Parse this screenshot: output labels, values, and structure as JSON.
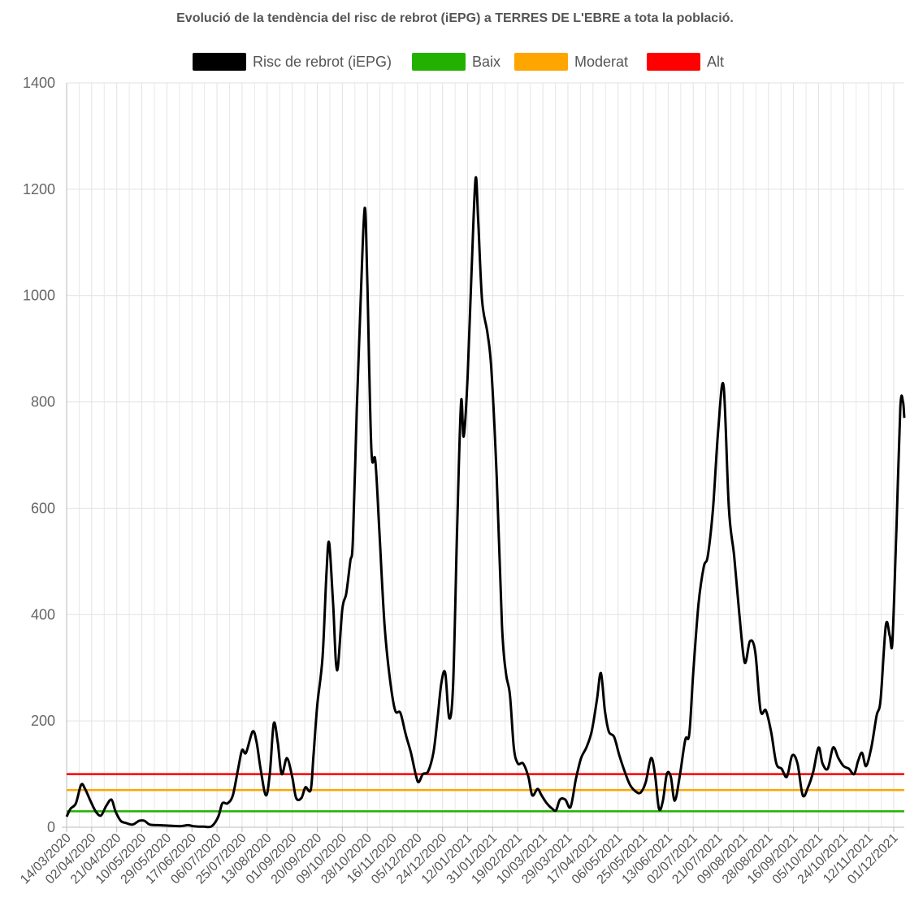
{
  "chart_data": {
    "type": "line",
    "title": "Evolució de la tendència del risc de rebrot (iEPG) a TERRES DE L'EBRE a tota la població.",
    "xlabel": "",
    "ylabel": "",
    "ylim": [
      0,
      1400
    ],
    "yticks": [
      0,
      200,
      400,
      600,
      800,
      1000,
      1200,
      1400
    ],
    "grid": true,
    "legend_position": "top",
    "x_tick_labels": [
      "14/03/2020",
      "02/04/2020",
      "21/04/2020",
      "10/05/2020",
      "29/05/2020",
      "17/06/2020",
      "06/07/2020",
      "25/07/2020",
      "13/08/2020",
      "01/09/2020",
      "20/09/2020",
      "09/10/2020",
      "28/10/2020",
      "16/11/2020",
      "05/12/2020",
      "24/12/2020",
      "12/01/2021",
      "31/01/2021",
      "19/02/2021",
      "10/03/2021",
      "29/03/2021",
      "17/04/2021",
      "06/05/2021",
      "25/05/2021",
      "13/06/2021",
      "02/07/2021",
      "21/07/2021",
      "09/08/2021",
      "28/08/2021",
      "16/09/2021",
      "05/10/2021",
      "24/10/2021",
      "12/11/2021",
      "01/12/2021"
    ],
    "series": [
      {
        "name": "Risc de rebrot (iEPG)",
        "color": "#000000",
        "points": [
          [
            "2020-03-14",
            20
          ],
          [
            "2020-03-17",
            35
          ],
          [
            "2020-03-21",
            45
          ],
          [
            "2020-03-25",
            80
          ],
          [
            "2020-03-28",
            72
          ],
          [
            "2020-04-01",
            50
          ],
          [
            "2020-04-05",
            30
          ],
          [
            "2020-04-09",
            22
          ],
          [
            "2020-04-13",
            40
          ],
          [
            "2020-04-17",
            52
          ],
          [
            "2020-04-20",
            30
          ],
          [
            "2020-04-24",
            12
          ],
          [
            "2020-04-28",
            8
          ],
          [
            "2020-05-03",
            5
          ],
          [
            "2020-05-08",
            12
          ],
          [
            "2020-05-12",
            12
          ],
          [
            "2020-05-16",
            5
          ],
          [
            "2020-05-22",
            4
          ],
          [
            "2020-05-30",
            3
          ],
          [
            "2020-06-08",
            2
          ],
          [
            "2020-06-14",
            4
          ],
          [
            "2020-06-18",
            2
          ],
          [
            "2020-06-26",
            1
          ],
          [
            "2020-07-02",
            2
          ],
          [
            "2020-07-07",
            20
          ],
          [
            "2020-07-10",
            45
          ],
          [
            "2020-07-14",
            45
          ],
          [
            "2020-07-18",
            60
          ],
          [
            "2020-07-22",
            110
          ],
          [
            "2020-07-25",
            145
          ],
          [
            "2020-07-28",
            140
          ],
          [
            "2020-08-02",
            180
          ],
          [
            "2020-08-05",
            160
          ],
          [
            "2020-08-08",
            110
          ],
          [
            "2020-08-12",
            60
          ],
          [
            "2020-08-15",
            100
          ],
          [
            "2020-08-18",
            195
          ],
          [
            "2020-08-21",
            160
          ],
          [
            "2020-08-24",
            100
          ],
          [
            "2020-08-28",
            130
          ],
          [
            "2020-09-01",
            95
          ],
          [
            "2020-09-04",
            55
          ],
          [
            "2020-09-08",
            55
          ],
          [
            "2020-09-11",
            75
          ],
          [
            "2020-09-15",
            70
          ],
          [
            "2020-09-17",
            130
          ],
          [
            "2020-09-20",
            230
          ],
          [
            "2020-09-24",
            320
          ],
          [
            "2020-09-27",
            480
          ],
          [
            "2020-09-29",
            535
          ],
          [
            "2020-10-02",
            420
          ],
          [
            "2020-10-05",
            295
          ],
          [
            "2020-10-09",
            410
          ],
          [
            "2020-10-12",
            440
          ],
          [
            "2020-10-15",
            500
          ],
          [
            "2020-10-17",
            540
          ],
          [
            "2020-10-20",
            790
          ],
          [
            "2020-10-23",
            1000
          ],
          [
            "2020-10-26",
            1165
          ],
          [
            "2020-10-28",
            1020
          ],
          [
            "2020-10-31",
            710
          ],
          [
            "2020-11-03",
            690
          ],
          [
            "2020-11-06",
            560
          ],
          [
            "2020-11-10",
            380
          ],
          [
            "2020-11-14",
            280
          ],
          [
            "2020-11-18",
            220
          ],
          [
            "2020-11-22",
            215
          ],
          [
            "2020-11-26",
            175
          ],
          [
            "2020-11-30",
            140
          ],
          [
            "2020-12-04",
            95
          ],
          [
            "2020-12-06",
            85
          ],
          [
            "2020-12-09",
            100
          ],
          [
            "2020-12-13",
            105
          ],
          [
            "2020-12-17",
            140
          ],
          [
            "2020-12-20",
            200
          ],
          [
            "2020-12-23",
            270
          ],
          [
            "2020-12-26",
            290
          ],
          [
            "2020-12-29",
            205
          ],
          [
            "2021-01-01",
            270
          ],
          [
            "2021-01-04",
            560
          ],
          [
            "2021-01-07",
            800
          ],
          [
            "2021-01-09",
            735
          ],
          [
            "2021-01-12",
            850
          ],
          [
            "2021-01-15",
            1050
          ],
          [
            "2021-01-18",
            1220
          ],
          [
            "2021-01-20",
            1140
          ],
          [
            "2021-01-23",
            990
          ],
          [
            "2021-01-27",
            930
          ],
          [
            "2021-01-30",
            860
          ],
          [
            "2021-02-03",
            660
          ],
          [
            "2021-02-07",
            380
          ],
          [
            "2021-02-10",
            290
          ],
          [
            "2021-02-13",
            250
          ],
          [
            "2021-02-16",
            150
          ],
          [
            "2021-02-19",
            120
          ],
          [
            "2021-02-23",
            120
          ],
          [
            "2021-02-27",
            95
          ],
          [
            "2021-03-02",
            60
          ],
          [
            "2021-03-06",
            72
          ],
          [
            "2021-03-09",
            60
          ],
          [
            "2021-03-13",
            45
          ],
          [
            "2021-03-17",
            35
          ],
          [
            "2021-03-20",
            32
          ],
          [
            "2021-03-23",
            52
          ],
          [
            "2021-03-27",
            52
          ],
          [
            "2021-03-31",
            38
          ],
          [
            "2021-04-04",
            90
          ],
          [
            "2021-04-08",
            130
          ],
          [
            "2021-04-12",
            150
          ],
          [
            "2021-04-16",
            180
          ],
          [
            "2021-04-20",
            240
          ],
          [
            "2021-04-23",
            290
          ],
          [
            "2021-04-26",
            220
          ],
          [
            "2021-04-29",
            180
          ],
          [
            "2021-05-03",
            170
          ],
          [
            "2021-05-07",
            135
          ],
          [
            "2021-05-11",
            105
          ],
          [
            "2021-05-15",
            80
          ],
          [
            "2021-05-19",
            68
          ],
          [
            "2021-05-23",
            65
          ],
          [
            "2021-05-27",
            85
          ],
          [
            "2021-05-31",
            130
          ],
          [
            "2021-06-03",
            100
          ],
          [
            "2021-06-06",
            35
          ],
          [
            "2021-06-09",
            50
          ],
          [
            "2021-06-12",
            100
          ],
          [
            "2021-06-15",
            95
          ],
          [
            "2021-06-18",
            50
          ],
          [
            "2021-06-22",
            100
          ],
          [
            "2021-06-26",
            165
          ],
          [
            "2021-06-29",
            175
          ],
          [
            "2021-07-02",
            290
          ],
          [
            "2021-07-06",
            420
          ],
          [
            "2021-07-10",
            490
          ],
          [
            "2021-07-13",
            510
          ],
          [
            "2021-07-17",
            600
          ],
          [
            "2021-07-21",
            750
          ],
          [
            "2021-07-25",
            830
          ],
          [
            "2021-07-29",
            600
          ],
          [
            "2021-08-02",
            510
          ],
          [
            "2021-08-06",
            400
          ],
          [
            "2021-08-10",
            310
          ],
          [
            "2021-08-14",
            350
          ],
          [
            "2021-08-18",
            330
          ],
          [
            "2021-08-22",
            220
          ],
          [
            "2021-08-26",
            220
          ],
          [
            "2021-08-30",
            180
          ],
          [
            "2021-09-03",
            120
          ],
          [
            "2021-09-07",
            110
          ],
          [
            "2021-09-11",
            95
          ],
          [
            "2021-09-15",
            135
          ],
          [
            "2021-09-19",
            120
          ],
          [
            "2021-09-23",
            60
          ],
          [
            "2021-09-27",
            75
          ],
          [
            "2021-10-01",
            105
          ],
          [
            "2021-10-05",
            150
          ],
          [
            "2021-10-08",
            120
          ],
          [
            "2021-10-12",
            110
          ],
          [
            "2021-10-16",
            150
          ],
          [
            "2021-10-20",
            130
          ],
          [
            "2021-10-24",
            115
          ],
          [
            "2021-10-28",
            110
          ],
          [
            "2021-11-01",
            100
          ],
          [
            "2021-11-04",
            125
          ],
          [
            "2021-11-07",
            140
          ],
          [
            "2021-11-10",
            115
          ],
          [
            "2021-11-14",
            150
          ],
          [
            "2021-11-18",
            210
          ],
          [
            "2021-11-21",
            240
          ],
          [
            "2021-11-25",
            380
          ],
          [
            "2021-11-28",
            360
          ],
          [
            "2021-11-30",
            350
          ],
          [
            "2021-12-03",
            560
          ],
          [
            "2021-12-06",
            790
          ],
          [
            "2021-12-08",
            800
          ],
          [
            "2021-12-09",
            770
          ]
        ]
      },
      {
        "name": "Baix",
        "color": "#22b100",
        "constant": 30
      },
      {
        "name": "Moderat",
        "color": "#ffa500",
        "constant": 70
      },
      {
        "name": "Alt",
        "color": "#ff0000",
        "constant": 100
      }
    ]
  }
}
